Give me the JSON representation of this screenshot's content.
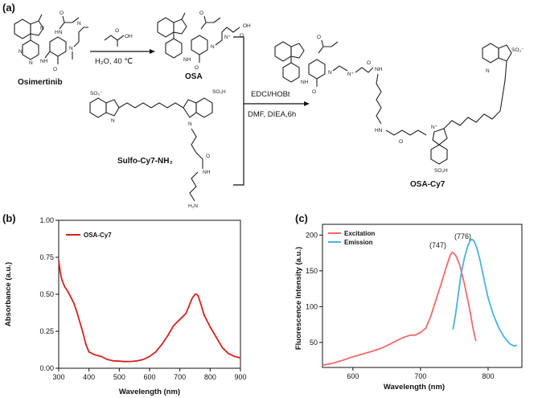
{
  "panels": {
    "a": "(a)",
    "b": "(b)",
    "c": "(c)"
  },
  "scheme": {
    "osimertinib": "Osimertinib",
    "osa": "OSA",
    "sulfo": "Sulfo-Cy7-NH₂",
    "product": "OSA-Cy7",
    "cond1": "H₂O, 40 ℃",
    "cond2a": "EDCI/HOBt",
    "cond2b": "DMF, DIEA,6h",
    "atoms": {
      "n": "N",
      "nh": "NH",
      "hn": "HN",
      "h": "H",
      "o": "O",
      "oh": "OH",
      "so3": "SO₃⁻",
      "so3h": "SO₃H",
      "nplus": "N⁺",
      "h2n": "H₂N"
    }
  },
  "chart_data": [
    {
      "type": "line",
      "panel": "(b)",
      "xlabel": "Wavelength (nm)",
      "ylabel": "Absorbance (a.u.)",
      "xlim": [
        300,
        900
      ],
      "ylim": [
        0,
        1.0
      ],
      "xticks": [
        "300",
        "400",
        "500",
        "600",
        "700",
        "800",
        "900"
      ],
      "yticks": [
        "0.00",
        "0.25",
        "0.50",
        "0.75",
        "1.00"
      ],
      "legend_position": "top-left",
      "series": [
        {
          "name": "OSA-Cy7",
          "color": "#d62020",
          "x": [
            300,
            305,
            310,
            320,
            330,
            340,
            350,
            360,
            370,
            380,
            390,
            400,
            420,
            440,
            460,
            480,
            500,
            520,
            540,
            560,
            580,
            600,
            620,
            640,
            660,
            680,
            700,
            720,
            730,
            740,
            750,
            755,
            760,
            770,
            780,
            800,
            820,
            840,
            860,
            880,
            900
          ],
          "y": [
            0.73,
            0.65,
            0.6,
            0.55,
            0.52,
            0.48,
            0.44,
            0.38,
            0.31,
            0.24,
            0.16,
            0.11,
            0.09,
            0.08,
            0.06,
            0.05,
            0.048,
            0.045,
            0.046,
            0.05,
            0.06,
            0.08,
            0.11,
            0.16,
            0.22,
            0.29,
            0.33,
            0.37,
            0.42,
            0.47,
            0.5,
            0.5,
            0.49,
            0.43,
            0.36,
            0.28,
            0.21,
            0.14,
            0.1,
            0.08,
            0.07
          ]
        }
      ]
    },
    {
      "type": "line",
      "panel": "(c)",
      "xlabel": "Wavelength (nm)",
      "ylabel": "Fluorescence Intensity (a.u.)",
      "xlim": [
        555,
        850
      ],
      "ylim": [
        15,
        215
      ],
      "xticks": [
        "600",
        "700",
        "800"
      ],
      "yticks": [
        "50",
        "100",
        "150",
        "200"
      ],
      "legend_position": "top-left",
      "annotations": [
        "(747)",
        "(776)"
      ],
      "series": [
        {
          "name": "Excitation",
          "color": "#f26a6a",
          "x": [
            555,
            570,
            585,
            600,
            615,
            630,
            645,
            660,
            670,
            678,
            685,
            692,
            700,
            708,
            715,
            722,
            730,
            738,
            744,
            747,
            752,
            758,
            765,
            772,
            778,
            782
          ],
          "y": [
            18,
            21,
            25,
            30,
            34,
            38,
            43,
            50,
            55,
            58,
            60,
            60,
            64,
            70,
            86,
            107,
            130,
            155,
            172,
            176,
            172,
            158,
            132,
            100,
            68,
            52
          ]
        },
        {
          "name": "Emission",
          "color": "#4ab1e0",
          "x": [
            748,
            752,
            756,
            760,
            765,
            770,
            774,
            776,
            779,
            783,
            788,
            794,
            800,
            808,
            816,
            824,
            832,
            838,
            843
          ],
          "y": [
            68,
            90,
            118,
            145,
            168,
            185,
            193,
            194,
            192,
            183,
            165,
            138,
            112,
            88,
            70,
            57,
            48,
            45,
            46
          ]
        }
      ]
    }
  ]
}
